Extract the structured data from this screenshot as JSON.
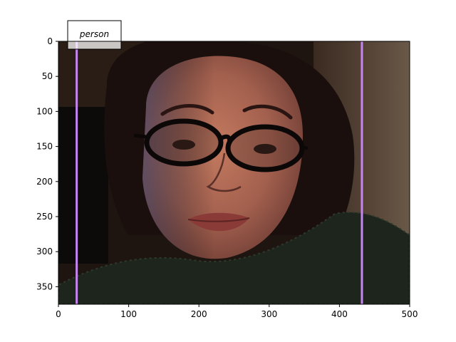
{
  "annotation": {
    "label": "person"
  },
  "box_color": "#c586f0",
  "axes": {
    "x": {
      "range": [
        0,
        500
      ],
      "ticks": [
        0,
        100,
        200,
        300,
        400,
        500
      ]
    },
    "y": {
      "range": [
        0,
        375
      ],
      "ticks": [
        0,
        50,
        100,
        150,
        200,
        250,
        300,
        350
      ],
      "inverted": true
    }
  },
  "detection": {
    "label": "person",
    "x_min": 26,
    "x_max": 432,
    "y_min": 0,
    "y_max": 375
  },
  "image": {
    "subject": "close-up photo of a woman with dark hair wearing black oval glasses, dark knit sweater, warm indoor lighting",
    "colors": {
      "background_dark": "#1e1511",
      "wall_right": "#5a4a3c",
      "skin": "#b06a55",
      "hair": "#1a0f0c"
    }
  }
}
